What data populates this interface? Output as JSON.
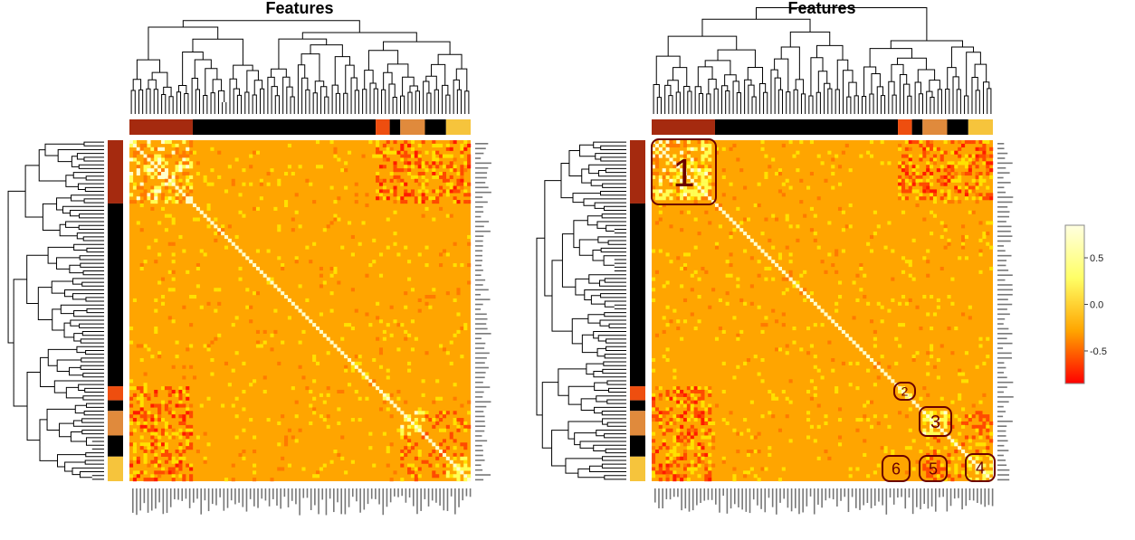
{
  "chart_data": [
    {
      "type": "heatmap",
      "title": "Features",
      "clusters": [
        {
          "color": "#a52a0f",
          "size": 18
        },
        {
          "color": "#000000",
          "size": 52
        },
        {
          "color": "#ee4e0f",
          "size": 4
        },
        {
          "color": "#000000",
          "size": 3
        },
        {
          "color": "#e08a3c",
          "size": 7
        },
        {
          "color": "#000000",
          "size": 6
        },
        {
          "color": "#f6c43c",
          "size": 7
        }
      ],
      "grid_size": 97,
      "base_value": 0.0,
      "diagonal_value": 1.0,
      "color_scale": {
        "min": -0.85,
        "max": 0.85,
        "colors": [
          "#ff0000",
          "#ffa500",
          "#ffff66",
          "#ffffe0"
        ]
      }
    },
    {
      "type": "heatmap",
      "title": "Features",
      "clusters": [
        {
          "color": "#a52a0f",
          "size": 18
        },
        {
          "color": "#000000",
          "size": 52
        },
        {
          "color": "#ee4e0f",
          "size": 4
        },
        {
          "color": "#000000",
          "size": 3
        },
        {
          "color": "#e08a3c",
          "size": 7
        },
        {
          "color": "#000000",
          "size": 6
        },
        {
          "color": "#f6c43c",
          "size": 7
        }
      ],
      "grid_size": 97,
      "annotations": [
        "1",
        "2",
        "3",
        "4",
        "5",
        "6"
      ]
    }
  ],
  "legend": {
    "ticks": [
      "0.5",
      "0.0",
      "-0.5"
    ],
    "tick_values": [
      0.5,
      0.0,
      -0.5
    ],
    "range": [
      -0.85,
      0.85
    ]
  }
}
